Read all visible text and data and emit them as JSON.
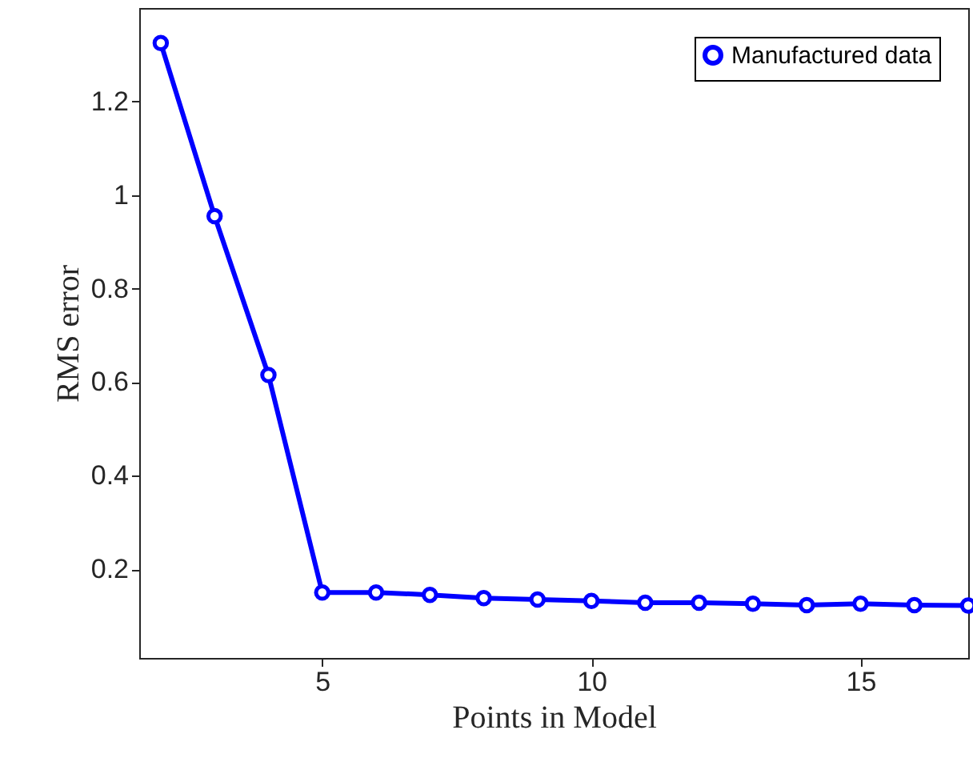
{
  "chart_data": {
    "type": "line",
    "xlabel": "Points in Model",
    "ylabel": "RMS error",
    "x": [
      2,
      3,
      4,
      5,
      6,
      7,
      8,
      9,
      10,
      11,
      12,
      13,
      14,
      15,
      16,
      17
    ],
    "series": [
      {
        "name": "Manufactured data",
        "color": "#0000ff",
        "values": [
          1.325,
          0.955,
          0.615,
          0.15,
          0.15,
          0.145,
          0.138,
          0.135,
          0.132,
          0.128,
          0.128,
          0.126,
          0.123,
          0.126,
          0.123,
          0.122
        ]
      }
    ],
    "xlim": [
      1.6,
      17
    ],
    "xticks": [
      5,
      10,
      15
    ],
    "ylim": [
      0.01,
      1.4
    ],
    "yticks": [
      0.2,
      0.4,
      0.6,
      0.8,
      1,
      1.2
    ],
    "grid": false,
    "legend": "top right",
    "marker": "circle",
    "line_style": "solid"
  }
}
